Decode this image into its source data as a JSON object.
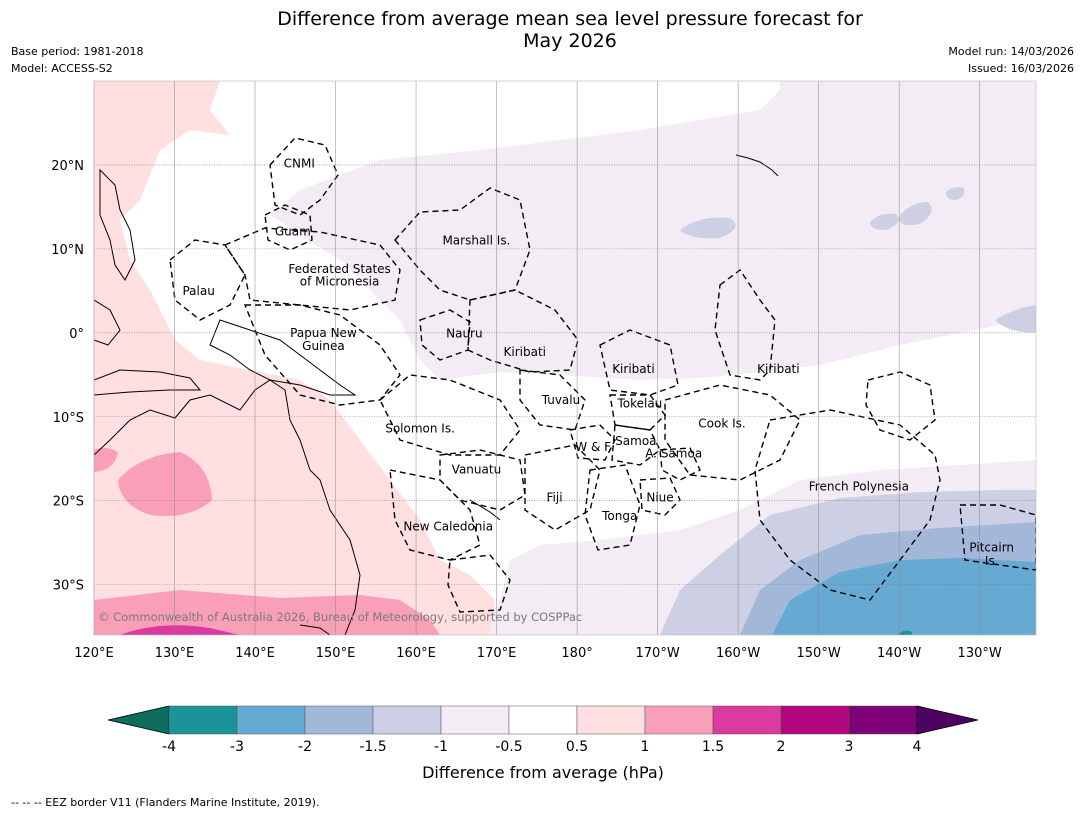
{
  "header": {
    "title_line1": "Difference from average mean sea level pressure forecast for",
    "title_line2": "May 2026",
    "base_period": "Base period: 1981-2018",
    "model": "Model: ACCESS-S2",
    "model_run": "Model run: 14/03/2026",
    "issued": "Issued: 16/03/2026"
  },
  "map": {
    "lon_range": [
      120,
      237
    ],
    "lat_range": [
      -36,
      30
    ],
    "lon_ticks": [
      {
        "value": 120,
        "label": "120°E"
      },
      {
        "value": 130,
        "label": "130°E"
      },
      {
        "value": 140,
        "label": "140°E"
      },
      {
        "value": 150,
        "label": "150°E"
      },
      {
        "value": 160,
        "label": "160°E"
      },
      {
        "value": 170,
        "label": "170°E"
      },
      {
        "value": 180,
        "label": "180°"
      },
      {
        "value": 190,
        "label": "170°W"
      },
      {
        "value": 200,
        "label": "160°W"
      },
      {
        "value": 210,
        "label": "150°W"
      },
      {
        "value": 220,
        "label": "140°W"
      },
      {
        "value": 230,
        "label": "130°W"
      }
    ],
    "lat_ticks": [
      {
        "value": 20,
        "label": "20°N"
      },
      {
        "value": 10,
        "label": "10°N"
      },
      {
        "value": 0,
        "label": "0°"
      },
      {
        "value": -10,
        "label": "10°S"
      },
      {
        "value": -20,
        "label": "20°S"
      },
      {
        "value": -30,
        "label": "30°S"
      }
    ],
    "places": [
      {
        "name": "CNMI",
        "lon": 145.5,
        "lat": 20.2
      },
      {
        "name": "Guam",
        "lon": 144.7,
        "lat": 12.1
      },
      {
        "name": "Marshall Is.",
        "lon": 167.5,
        "lat": 11.0
      },
      {
        "name": "Federated States",
        "lon": 150.5,
        "lat": 7.6
      },
      {
        "name": "of Micronesia",
        "lon": 150.5,
        "lat": 6.1
      },
      {
        "name": "Palau",
        "lon": 133.0,
        "lat": 5.0
      },
      {
        "name": "Papua New",
        "lon": 148.5,
        "lat": 0.0
      },
      {
        "name": "Guinea",
        "lon": 148.5,
        "lat": -1.6
      },
      {
        "name": "Nauru",
        "lon": 166.0,
        "lat": -0.1
      },
      {
        "name": "Kiribati",
        "lon": 173.5,
        "lat": -2.3
      },
      {
        "name": "Kiribati",
        "lon": 187.0,
        "lat": -4.3
      },
      {
        "name": "Kiribati",
        "lon": 205.0,
        "lat": -4.3
      },
      {
        "name": "Tuvalu",
        "lon": 178.0,
        "lat": -8.0
      },
      {
        "name": "Tokelau",
        "lon": 187.8,
        "lat": -8.4
      },
      {
        "name": "Cook Is.",
        "lon": 198.0,
        "lat": -10.8
      },
      {
        "name": "Solomon Is.",
        "lon": 160.5,
        "lat": -11.4
      },
      {
        "name": "W & F",
        "lon": 182.0,
        "lat": -13.6
      },
      {
        "name": "Samoa",
        "lon": 187.3,
        "lat": -12.9
      },
      {
        "name": "A. Samoa",
        "lon": 192.0,
        "lat": -14.4
      },
      {
        "name": "Vanuatu",
        "lon": 167.5,
        "lat": -16.3
      },
      {
        "name": "Fiji",
        "lon": 177.2,
        "lat": -19.6
      },
      {
        "name": "Niue",
        "lon": 190.3,
        "lat": -19.6
      },
      {
        "name": "Tonga",
        "lon": 185.3,
        "lat": -21.8
      },
      {
        "name": "New Caledonia",
        "lon": 164.0,
        "lat": -23.1
      },
      {
        "name": "French Polynesia",
        "lon": 215.0,
        "lat": -18.3
      },
      {
        "name": "Pitcairn",
        "lon": 231.5,
        "lat": -25.6
      },
      {
        "name": "Is.",
        "lon": 231.5,
        "lat": -27.2
      }
    ],
    "copyright": "© Commonwealth of Australia 2026, Bureau of Meteorology, supported by COSPPac"
  },
  "colorbar": {
    "title": "Difference from average (hPa)",
    "labels": [
      "-4",
      "-3",
      "-2",
      "-1.5",
      "-1",
      "-0.5",
      "0.5",
      "1",
      "1.5",
      "2",
      "3",
      "4"
    ],
    "colors": [
      "#0e6e5c",
      "#1b9399",
      "#66aad3",
      "#a3b8d9",
      "#cdcfe5",
      "#f3ecf5",
      "#ffffff",
      "#ffdfdf",
      "#f9a0b8",
      "#db3aa0",
      "#b0067e",
      "#7f0076",
      "#4e0063"
    ]
  },
  "footer": "--  --  -- EEZ border V11 (Flanders Marine Institute, 2019)."
}
